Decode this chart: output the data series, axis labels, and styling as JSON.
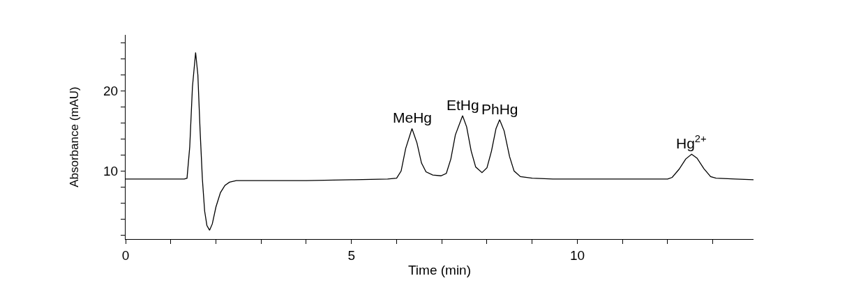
{
  "chart_data": {
    "type": "line",
    "xlabel": "Time (min)",
    "ylabel": "Absorbance (mAU)",
    "x": [
      0,
      0.6,
      1.0,
      1.3,
      1.36,
      1.42,
      1.48,
      1.55,
      1.6,
      1.65,
      1.7,
      1.75,
      1.8,
      1.86,
      1.92,
      2.0,
      2.1,
      2.2,
      2.3,
      2.45,
      3,
      4,
      5,
      5.8,
      6.0,
      6.1,
      6.2,
      6.34,
      6.45,
      6.55,
      6.65,
      6.8,
      6.98,
      7.1,
      7.2,
      7.3,
      7.46,
      7.55,
      7.65,
      7.75,
      7.89,
      8.0,
      8.1,
      8.2,
      8.28,
      8.38,
      8.5,
      8.6,
      8.74,
      9.0,
      9.46,
      10,
      11,
      12.0,
      12.1,
      12.25,
      12.4,
      12.53,
      12.65,
      12.8,
      12.95,
      13.07,
      13.5,
      13.9
    ],
    "series": [
      {
        "color": "#000000",
        "values": [
          9.0,
          9.0,
          9.0,
          9.0,
          9.1,
          13,
          20.5,
          24.8,
          22,
          15,
          9,
          5,
          3.2,
          2.6,
          3.4,
          5.5,
          7.3,
          8.2,
          8.6,
          8.8,
          8.8,
          8.8,
          8.9,
          9.0,
          9.1,
          10,
          12.8,
          15.3,
          13.5,
          11,
          9.9,
          9.5,
          9.4,
          9.7,
          11.5,
          14.5,
          16.9,
          15.5,
          12.5,
          10.5,
          9.8,
          10.4,
          12.5,
          15.3,
          16.4,
          15,
          11.8,
          10,
          9.3,
          9.1,
          9.0,
          9.0,
          9.0,
          9.0,
          9.2,
          10.2,
          11.5,
          12.1,
          11.6,
          10.3,
          9.3,
          9.1,
          9.0,
          8.9
        ]
      }
    ],
    "xlim": [
      0,
      13.9
    ],
    "ylim": [
      1.5,
      27
    ],
    "xticks": [
      0,
      {
        "value": 1,
        "label": null
      },
      {
        "value": 2,
        "label": null
      },
      {
        "value": 3,
        "label": null
      },
      {
        "value": 4,
        "label": null
      },
      5,
      {
        "value": 6,
        "label": null
      },
      {
        "value": 7,
        "label": null
      },
      {
        "value": 8,
        "label": null
      },
      {
        "value": 9,
        "label": null
      },
      10,
      {
        "value": 11,
        "label": null
      },
      {
        "value": 12,
        "label": null
      },
      {
        "value": 13,
        "label": null
      }
    ],
    "yticks": [
      {
        "value": 2,
        "label": null
      },
      {
        "value": 4,
        "label": null
      },
      {
        "value": 6,
        "label": null
      },
      {
        "value": 8,
        "label": null
      },
      10,
      {
        "value": 12,
        "label": null
      },
      {
        "value": 14,
        "label": null
      },
      {
        "value": 16,
        "label": null
      },
      {
        "value": 18,
        "label": null
      },
      20,
      {
        "value": 22,
        "label": null
      },
      {
        "value": 24,
        "label": null
      },
      {
        "value": 26,
        "label": null
      }
    ],
    "annotations": [
      {
        "text": "MeHg",
        "x": 6.34,
        "y": 15.3
      },
      {
        "text": "EtHg",
        "x": 7.46,
        "y": 16.9
      },
      {
        "text": "PhHg",
        "x": 8.28,
        "y": 16.4
      },
      {
        "text": "Hg$^{2+}$",
        "x": 12.53,
        "y": 12.1
      }
    ],
    "legend": false,
    "marker": "none",
    "line_style": "solid"
  }
}
